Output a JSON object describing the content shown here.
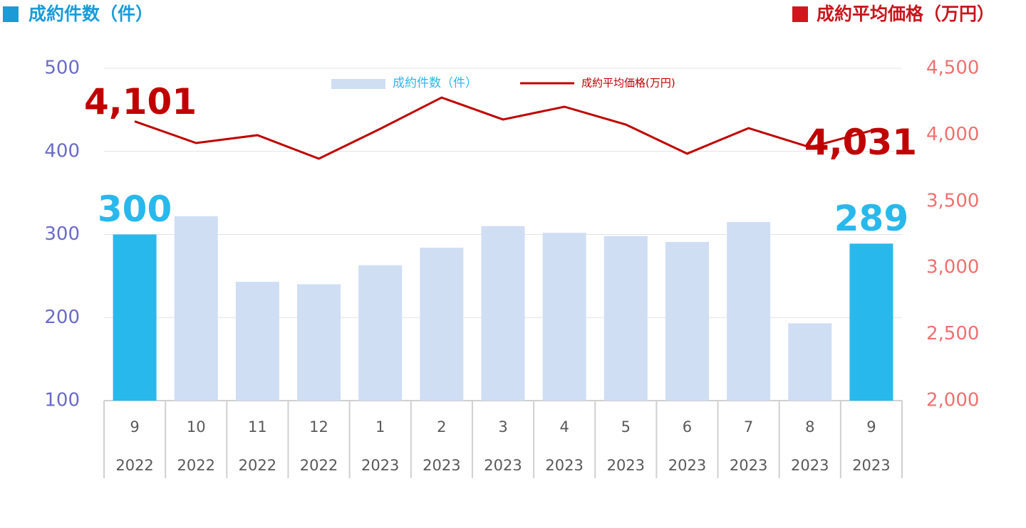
{
  "chart_data": {
    "type": "bar-line",
    "header_left": "成約件数（件）",
    "header_right": "成約平均価格（万円）",
    "categories": [
      [
        "9",
        "2022"
      ],
      [
        "10",
        "2022"
      ],
      [
        "11",
        "2022"
      ],
      [
        "12",
        "2022"
      ],
      [
        "1",
        "2023"
      ],
      [
        "2",
        "2023"
      ],
      [
        "3",
        "2023"
      ],
      [
        "4",
        "2023"
      ],
      [
        "5",
        "2023"
      ],
      [
        "6",
        "2023"
      ],
      [
        "7",
        "2023"
      ],
      [
        "8",
        "2023"
      ],
      [
        "9",
        "2023"
      ]
    ],
    "series": [
      {
        "name": "成約件数（件）",
        "type": "bar",
        "color": "#cfdef3",
        "colors": [
          "#29b8ec",
          "#cfdef3",
          "#cfdef3",
          "#cfdef3",
          "#cfdef3",
          "#cfdef3",
          "#cfdef3",
          "#cfdef3",
          "#cfdef3",
          "#cfdef3",
          "#cfdef3",
          "#cfdef3",
          "#29b8ec"
        ],
        "values": [
          300,
          322,
          243,
          240,
          263,
          284,
          310,
          302,
          298,
          291,
          315,
          193,
          289
        ],
        "value_labels": [
          "300",
          null,
          null,
          null,
          null,
          null,
          null,
          null,
          null,
          null,
          null,
          null,
          "289"
        ]
      },
      {
        "name": "成約平均価格(万円)",
        "type": "line",
        "axis": "y2",
        "color": "#c00000",
        "values": [
          4101,
          3938,
          3997,
          3820,
          4045,
          4280,
          4115,
          4211,
          4077,
          3858,
          4050,
          3906,
          4031
        ],
        "value_labels": [
          "4,101",
          null,
          null,
          null,
          null,
          null,
          null,
          null,
          null,
          null,
          null,
          null,
          "4,031"
        ]
      }
    ],
    "ylim": [
      100,
      500
    ],
    "yticks": [
      100,
      200,
      300,
      400,
      500
    ],
    "y2lim": [
      2000,
      4500
    ],
    "y2ticks": [
      {
        "value": 2000,
        "label": "2,000"
      },
      {
        "value": 2500,
        "label": "2,500"
      },
      {
        "value": 3000,
        "label": "3,000"
      },
      {
        "value": 3500,
        "label": "3,500"
      },
      {
        "value": 4000,
        "label": "4,000"
      },
      {
        "value": 4500,
        "label": "4,500"
      }
    ],
    "grid": true,
    "legend": "top"
  }
}
